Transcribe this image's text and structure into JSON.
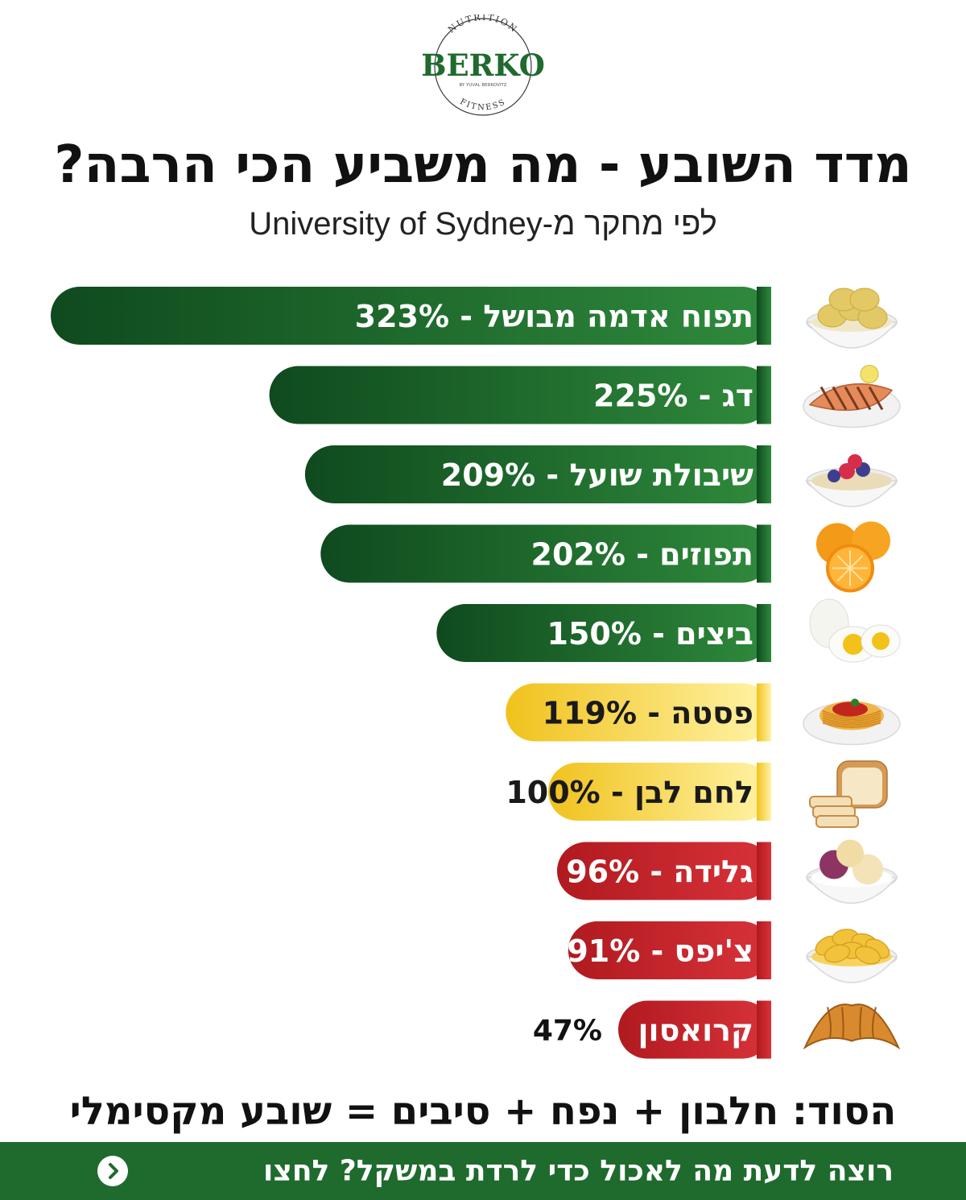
{
  "brand": {
    "name": "BERKO",
    "ring_top": "NUTRITION",
    "ring_sub": "BY YUVAL BERKOVITZ",
    "ring_bottom": "FITNESS",
    "color": "#1f6b2e"
  },
  "title": "מדד השובע - מה משביע הכי הרבה?",
  "subtitle": "לפי מחקר מ-University of Sydney",
  "chart_data": {
    "type": "bar",
    "orientation": "horizontal",
    "unit": "%",
    "categories": [
      "תפוח אדמה מבושל",
      "דג",
      "שיבולת שועל",
      "תפוזים",
      "ביצים",
      "פסטה",
      "לחם לבן",
      "גלידה",
      "צ'יפס",
      "קרואסון"
    ],
    "values": [
      323,
      225,
      209,
      202,
      150,
      119,
      100,
      96,
      91,
      47
    ],
    "labels": [
      "תפוח אדמה מבושל - 323%",
      "דג - 225%",
      "שיבולת שועל - 209%",
      "תפוזים - 202%",
      "ביצים - 150%",
      "פסטה - 119%",
      "לחם לבן - 100%",
      "גלידה - 96%",
      "צ'יפס - 91%",
      "קרואסון"
    ],
    "outside_value_label": "47%",
    "icons": [
      "boiled-potatoes-icon",
      "grilled-fish-icon",
      "oatmeal-bowl-icon",
      "oranges-icon",
      "boiled-eggs-icon",
      "pasta-plate-icon",
      "white-bread-icon",
      "ice-cream-bowl-icon",
      "chips-bowl-icon",
      "croissant-icon"
    ],
    "colors": {
      "green": [
        "#0f4a1e",
        "#2f8a3c"
      ],
      "yellow": [
        "#f0c21c",
        "#fff3a6"
      ],
      "red": [
        "#b01a1f",
        "#d8323a"
      ]
    },
    "bar_color_groups": [
      "green",
      "green",
      "green",
      "green",
      "green",
      "yellow",
      "yellow",
      "red",
      "red",
      "red"
    ]
  },
  "secret": "הסוד: חלבון + נפח + סיבים = שובע מקסימלי",
  "cta": {
    "text": "רוצה לדעת מה לאכול כדי לרדת במשקל? לחצו",
    "icon": "chevron-left-circle-icon"
  }
}
